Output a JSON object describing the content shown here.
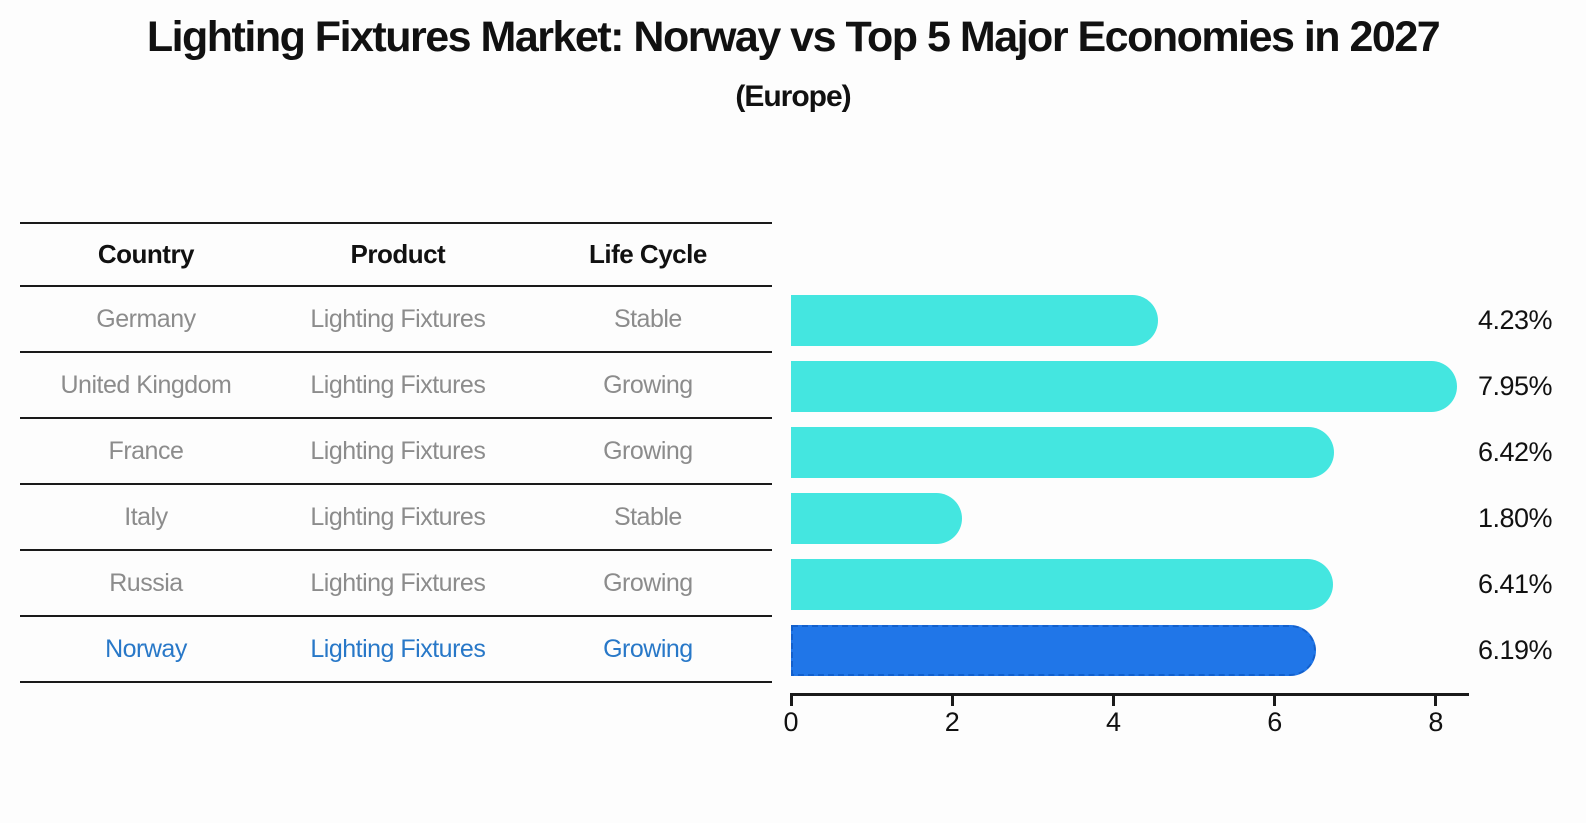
{
  "title": "Lighting Fixtures Market: Norway vs Top 5 Major Economies in 2027",
  "subtitle": "(Europe)",
  "table": {
    "headers": [
      "Country",
      "Product",
      "Life Cycle"
    ],
    "rows": [
      {
        "country": "Germany",
        "product": "Lighting Fixtures",
        "life_cycle": "Stable",
        "value": 4.23,
        "label": "4.23%",
        "highlight": false
      },
      {
        "country": "United Kingdom",
        "product": "Lighting Fixtures",
        "life_cycle": "Growing",
        "value": 7.95,
        "label": "7.95%",
        "highlight": false
      },
      {
        "country": "France",
        "product": "Lighting Fixtures",
        "life_cycle": "Growing",
        "value": 6.42,
        "label": "6.42%",
        "highlight": false
      },
      {
        "country": "Italy",
        "product": "Lighting Fixtures",
        "life_cycle": "Stable",
        "value": 1.8,
        "label": "1.80%",
        "highlight": false
      },
      {
        "country": "Russia",
        "product": "Lighting Fixtures",
        "life_cycle": "Growing",
        "value": 6.41,
        "label": "6.41%",
        "highlight": false
      },
      {
        "country": "Norway",
        "product": "Lighting Fixtures",
        "life_cycle": "Growing",
        "value": 6.19,
        "label": "6.19%",
        "highlight": true
      }
    ]
  },
  "chart_data": {
    "type": "bar",
    "orientation": "horizontal",
    "title": "Lighting Fixtures Market: Norway vs Top 5 Major Economies in 2027",
    "subtitle": "(Europe)",
    "categories": [
      "Germany",
      "United Kingdom",
      "France",
      "Italy",
      "Russia",
      "Norway"
    ],
    "values": [
      4.23,
      7.95,
      6.42,
      1.8,
      6.41,
      6.19
    ],
    "value_labels": [
      "4.23%",
      "7.95%",
      "6.42%",
      "1.80%",
      "6.41%",
      "6.19%"
    ],
    "unit": "%",
    "xlabel": "",
    "ylabel": "",
    "xlim": [
      0,
      8.41
    ],
    "x_ticks": [
      0,
      2,
      4,
      6,
      8
    ],
    "grid": false,
    "legend": false,
    "bar_style": "rounded-right-cap",
    "highlight_category": "Norway",
    "highlight_style": "dashed-border"
  },
  "colors": {
    "background": "#fdfdfd",
    "bar_color": "#44e6e0",
    "highlight_bar_color": "#2076e8",
    "highlight_border": "#1360cc",
    "highlight_text": "#2878c8",
    "row_text": "#8c8c8c",
    "header_text": "#111111",
    "axis": "#1a1a1a"
  }
}
